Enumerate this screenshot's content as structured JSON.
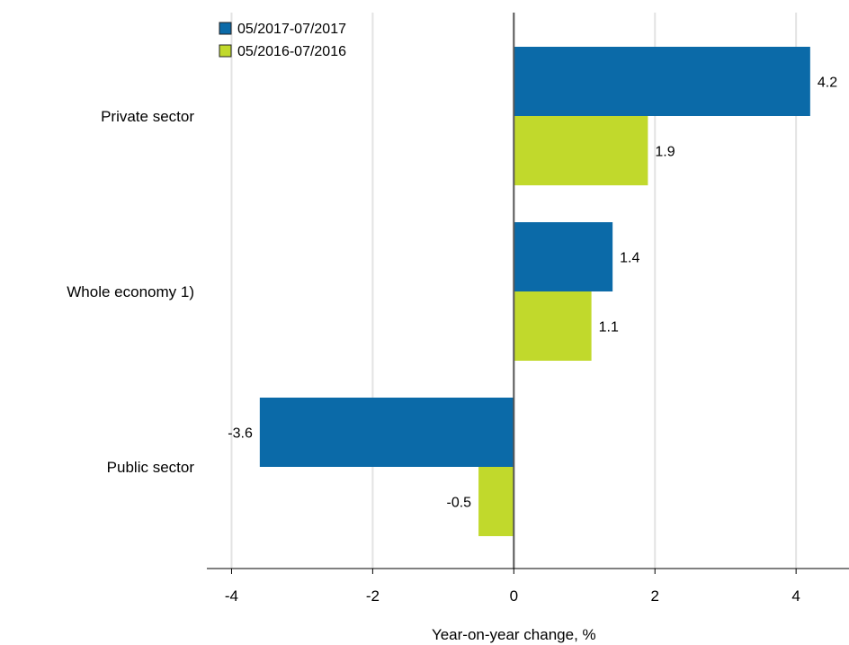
{
  "chart_data": {
    "type": "bar",
    "orientation": "horizontal",
    "categories": [
      "Private sector",
      "Whole economy 1)",
      "Public sector"
    ],
    "series": [
      {
        "name": "05/2017-07/2017",
        "color": "#0b6aa8",
        "values": [
          4.2,
          1.4,
          -3.6
        ]
      },
      {
        "name": "05/2016-07/2016",
        "color": "#c1d92c",
        "values": [
          1.9,
          1.1,
          -0.5
        ]
      }
    ],
    "xlabel": "Year-on-year change, %",
    "ylabel": "",
    "xlim": [
      -4.35,
      4.75
    ],
    "xticks": [
      -4,
      -2,
      0,
      2,
      4
    ],
    "grid": "vertical",
    "legend": "top-left",
    "data_labels": true
  }
}
